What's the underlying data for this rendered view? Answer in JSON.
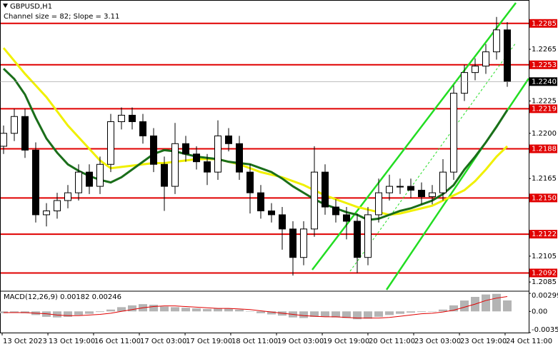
{
  "chart_data": [
    {
      "type": "candlestick",
      "title": "GBPUSD,H1",
      "subtitle": "Channel size = 82; Slope = 3.11",
      "ylim": [
        1.2079,
        1.2302
      ],
      "yticks": [
        {
          "value": 1.2265,
          "label": "1.2265"
        },
        {
          "value": 1.2225,
          "label": "1.2225"
        },
        {
          "value": 1.22,
          "label": "1.2200"
        },
        {
          "value": 1.2165,
          "label": "1.2165"
        },
        {
          "value": 1.2105,
          "label": "1.2105"
        },
        {
          "value": 1.2085,
          "label": "1.2085"
        }
      ],
      "levels": [
        {
          "value": 1.2285,
          "label": "1.2285"
        },
        {
          "value": 1.2253,
          "label": "1.2253"
        },
        {
          "value": 1.2219,
          "label": "1.2219"
        },
        {
          "value": 1.2188,
          "label": "1.2188"
        },
        {
          "value": 1.215,
          "label": "1.2150"
        },
        {
          "value": 1.2122,
          "label": "1.2122"
        },
        {
          "value": 1.2092,
          "label": "1.2092"
        }
      ],
      "level_color": "#e00000",
      "last_price": {
        "value": 1.224,
        "label": "1.2240"
      },
      "xticks": [
        {
          "value": 0,
          "label": "13 Oct 2023"
        },
        {
          "value": 4.27,
          "label": "13 Oct 19:00"
        },
        {
          "value": 8.53,
          "label": "16 Oct 11:00"
        },
        {
          "value": 12.8,
          "label": "17 Oct 03:00"
        },
        {
          "value": 17.07,
          "label": "17 Oct 19:00"
        },
        {
          "value": 21.33,
          "label": "18 Oct 11:00"
        },
        {
          "value": 25.6,
          "label": "19 Oct 03:00"
        },
        {
          "value": 29.87,
          "label": "19 Oct 19:00"
        },
        {
          "value": 34.13,
          "label": "20 Oct 11:00"
        },
        {
          "value": 38.4,
          "label": "23 Oct 03:00"
        },
        {
          "value": 42.67,
          "label": "23 Oct 19:00"
        },
        {
          "value": 46.93,
          "label": "24 Oct 11:00"
        }
      ],
      "open": [
        1.219,
        1.22,
        1.2213,
        1.2187,
        1.2137,
        1.214,
        1.2148,
        1.2154,
        1.217,
        1.2159,
        1.2176,
        1.2209,
        1.2214,
        1.2209,
        1.2198,
        1.2176,
        1.2159,
        1.2192,
        1.2184,
        1.2178,
        1.217,
        1.2198,
        1.2192,
        1.217,
        1.2154,
        1.214,
        1.2137,
        1.2126,
        1.2104,
        1.2126,
        1.217,
        1.2143,
        1.2137,
        1.2132,
        1.2104,
        1.2137,
        1.2154,
        1.2159,
        1.2159,
        1.2156,
        1.2151,
        1.2154,
        1.217,
        1.2231,
        1.2247,
        1.2252,
        1.2263,
        1.228
      ],
      "high": [
        1.2206,
        1.2219,
        1.2219,
        1.2193,
        1.2146,
        1.2154,
        1.216,
        1.2176,
        1.2176,
        1.2182,
        1.2215,
        1.222,
        1.222,
        1.2215,
        1.2204,
        1.2182,
        1.2208,
        1.2198,
        1.219,
        1.2184,
        1.221,
        1.2204,
        1.2198,
        1.2176,
        1.216,
        1.2146,
        1.2143,
        1.2132,
        1.2132,
        1.219,
        1.2176,
        1.2149,
        1.2143,
        1.2138,
        1.2143,
        1.2165,
        1.2168,
        1.2165,
        1.2165,
        1.2162,
        1.216,
        1.218,
        1.2237,
        1.2253,
        1.2258,
        1.2269,
        1.229,
        1.2286
      ],
      "low": [
        1.2184,
        1.2194,
        1.2181,
        1.2131,
        1.2128,
        1.2134,
        1.2142,
        1.2148,
        1.2153,
        1.2153,
        1.217,
        1.2203,
        1.2203,
        1.2192,
        1.217,
        1.214,
        1.2153,
        1.2178,
        1.2172,
        1.216,
        1.2164,
        1.2186,
        1.2164,
        1.2138,
        1.2134,
        1.2131,
        1.211,
        1.209,
        1.2098,
        1.212,
        1.2137,
        1.2131,
        1.2118,
        1.2092,
        1.2098,
        1.2131,
        1.2148,
        1.2153,
        1.215,
        1.2145,
        1.2145,
        1.2148,
        1.2164,
        1.2225,
        1.2241,
        1.2246,
        1.2257,
        1.2236
      ],
      "close": [
        1.22,
        1.2213,
        1.2187,
        1.2137,
        1.214,
        1.2148,
        1.2154,
        1.217,
        1.2159,
        1.2176,
        1.2209,
        1.2214,
        1.2209,
        1.2198,
        1.2176,
        1.2159,
        1.2192,
        1.2184,
        1.2178,
        1.217,
        1.2198,
        1.2192,
        1.217,
        1.2154,
        1.214,
        1.2137,
        1.2126,
        1.2104,
        1.2126,
        1.217,
        1.2143,
        1.2137,
        1.2132,
        1.2104,
        1.2137,
        1.2154,
        1.2159,
        1.2159,
        1.2156,
        1.2151,
        1.2154,
        1.217,
        1.2231,
        1.2247,
        1.2252,
        1.2263,
        1.228,
        1.224
      ],
      "lines": [
        {
          "color": "#f0f000",
          "values": [
            1.2266,
            1.2256,
            1.2246,
            1.2237,
            1.2228,
            1.2217,
            1.2206,
            1.2197,
            1.2188,
            1.2179,
            1.2173,
            1.2174,
            1.2175,
            1.2176,
            1.2177,
            1.2177,
            1.2178,
            1.2179,
            1.218,
            1.218,
            1.218,
            1.2178,
            1.2176,
            1.2173,
            1.217,
            1.2168,
            1.2166,
            1.2163,
            1.216,
            1.2156,
            1.2152,
            1.2149,
            1.2146,
            1.2143,
            1.2141,
            1.2139,
            1.2137,
            1.2138,
            1.214,
            1.2142,
            1.2144,
            1.2148,
            1.2152,
            1.2156,
            1.2163,
            1.2172,
            1.2182,
            1.219
          ]
        },
        {
          "color": "#1a6e1a",
          "values": [
            1.225,
            1.2242,
            1.223,
            1.2212,
            1.2196,
            1.2185,
            1.2176,
            1.2171,
            1.2167,
            1.2164,
            1.2162,
            1.2166,
            1.2172,
            1.2178,
            1.2184,
            1.2187,
            1.2186,
            1.2184,
            1.2182,
            1.2181,
            1.218,
            1.2178,
            1.2177,
            1.2176,
            1.2173,
            1.217,
            1.2165,
            1.2159,
            1.2154,
            1.2149,
            1.2145,
            1.2142,
            1.2139,
            1.2137,
            1.2133,
            1.2134,
            1.2137,
            1.214,
            1.2142,
            1.2145,
            1.2148,
            1.2153,
            1.216,
            1.2172,
            1.2182,
            1.2193,
            1.2205,
            1.2218
          ]
        }
      ]
    },
    {
      "type": "macd",
      "title": "MACD(12,26,9) 0.00182 0.00246",
      "ylim": [
        -0.00351,
        0.00299
      ],
      "yticks": [
        0.00299,
        {
          "value": 0,
          "label": "0.00"
        },
        -0.00351
      ],
      "color": "#b4b4b4",
      "signal_color": "#e00000",
      "values": [
        -0.0003,
        -0.0002,
        -0.0003,
        -0.0006,
        -0.0009,
        -0.001,
        -0.0009,
        -0.0006,
        -0.0004,
        -0.0001,
        0.0003,
        0.0007,
        0.001,
        0.0012,
        0.0011,
        0.0008,
        0.0007,
        0.0006,
        0.0005,
        0.0004,
        0.0005,
        0.0005,
        0.0003,
        0,
        -0.0003,
        -0.0005,
        -0.0007,
        -0.001,
        -0.0011,
        -0.0009,
        -0.0009,
        -0.001,
        -0.0011,
        -0.0013,
        -0.0012,
        -0.0009,
        -0.0006,
        -0.0004,
        -0.0002,
        -0.0001,
        0,
        0.0003,
        0.001,
        0.0018,
        0.0024,
        0.0028,
        0.0029,
        0.00182
      ],
      "signal": [
        -0.0002,
        -0.0002,
        -0.0002,
        -0.0003,
        -0.0004,
        -0.0006,
        -0.0007,
        -0.0007,
        -0.0006,
        -0.0005,
        -0.0003,
        0,
        0.0003,
        0.0006,
        0.0008,
        0.0009,
        0.0009,
        0.0008,
        0.0007,
        0.0006,
        0.0005,
        0.0005,
        0.0004,
        0.0003,
        0.0001,
        -0.0001,
        -0.0003,
        -0.0005,
        -0.0007,
        -0.0008,
        -0.0009,
        -0.0009,
        -0.001,
        -0.0011,
        -0.0011,
        -0.0011,
        -0.001,
        -0.0008,
        -0.0006,
        -0.0004,
        -0.0003,
        -0.0001,
        0.0002,
        0.0007,
        0.0012,
        0.0018,
        0.0022,
        0.00246
      ]
    }
  ]
}
